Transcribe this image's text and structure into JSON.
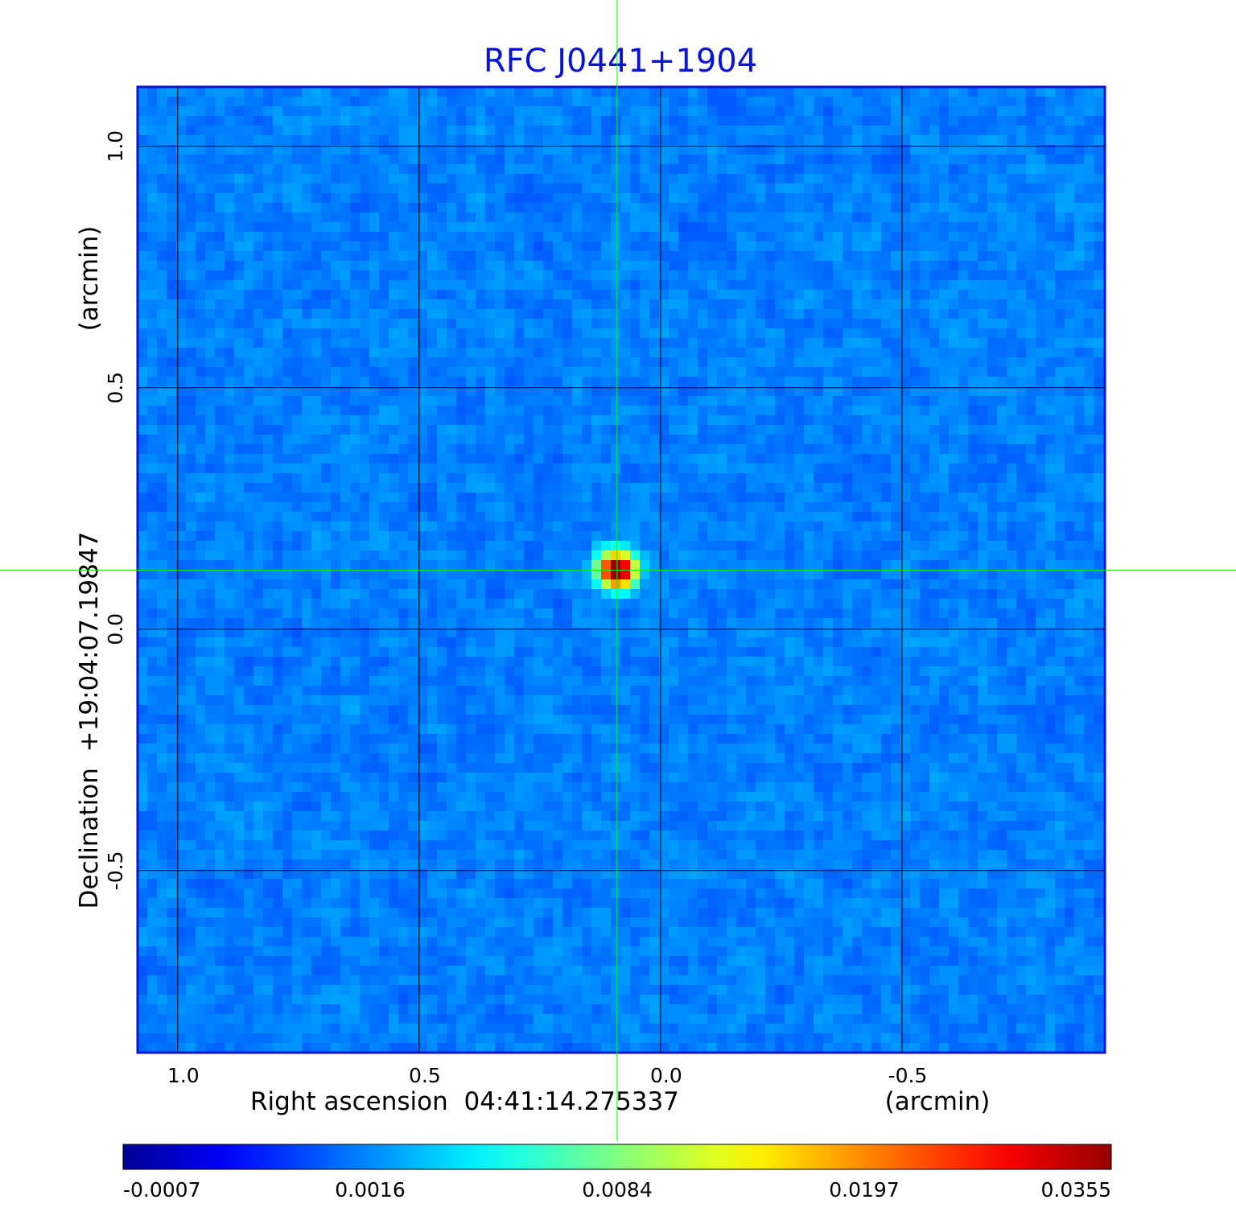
{
  "chart_data": {
    "type": "image",
    "title": "RFC J0441+1904",
    "title_color": "#0a14d2",
    "x_label": "Right ascension  04:41:14.275337",
    "x_unit_label": "(arcmin)",
    "y_label": "Declination  +19:04:07.19847",
    "y_unit_label": "(arcmin)",
    "xlim": [
      1.083,
      -0.92
    ],
    "ylim": [
      -0.877,
      1.123
    ],
    "xticks": [
      {
        "value": 1,
        "label": "1.0"
      },
      0.5,
      {
        "value": 0,
        "label": "0.0"
      },
      -0.5
    ],
    "yticks": [
      {
        "value": 1,
        "label": "1.0"
      },
      0.5,
      {
        "value": 0,
        "label": "0.0"
      },
      -0.5
    ],
    "grid": true,
    "crosshair": {
      "x": 0.09,
      "y": 0.122,
      "color": "#00ff00"
    },
    "colorbar": {
      "colormap": "jet",
      "ticks": [
        -0.0007,
        0.0016,
        0.0084,
        0.0197,
        0.0355
      ]
    }
  }
}
